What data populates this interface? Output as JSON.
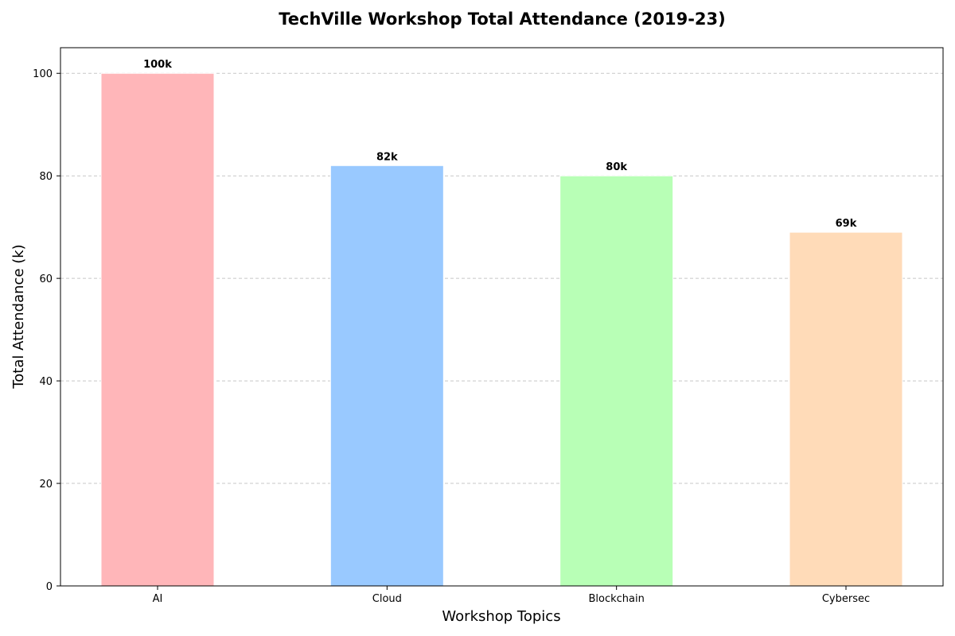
{
  "chart_data": {
    "type": "bar",
    "title": "TechVille Workshop Total Attendance (2019-23)",
    "xlabel": "Workshop Topics",
    "ylabel": "Total Attendance (k)",
    "categories": [
      "AI",
      "Cloud",
      "Blockchain",
      "Cybersec"
    ],
    "values": [
      100,
      82,
      80,
      69
    ],
    "data_labels": [
      "100k",
      "82k",
      "80k",
      "69k"
    ],
    "colors": [
      "#ffb6b9",
      "#99c9ff",
      "#b8ffb6",
      "#ffdbb8"
    ],
    "yticks": [
      0,
      20,
      40,
      60,
      80,
      100
    ],
    "ylim": [
      0,
      105
    ],
    "grid": "horizontal dashed",
    "legend": false
  }
}
